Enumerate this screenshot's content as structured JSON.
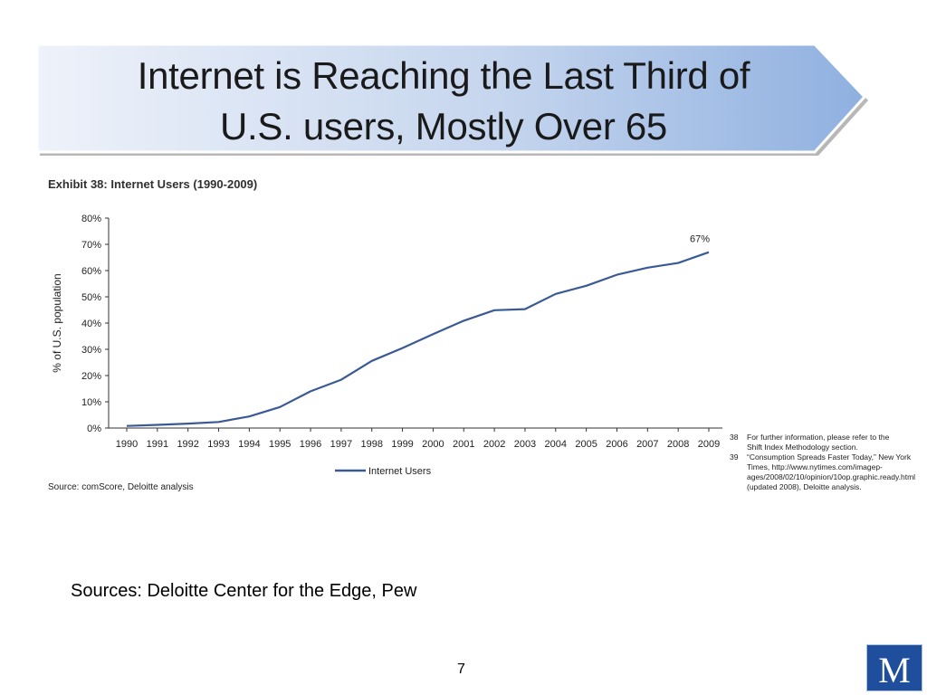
{
  "slide": {
    "title_line1": "Internet is Reaching the Last Third of",
    "title_line2": "U.S. users, Mostly Over 65",
    "exhibit_title": "Exhibit 38: Internet Users (1990-2009)",
    "source_small": "Source: comScore, Deloitte analysis",
    "sources_main": "Sources: Deloitte Center for the Edge, Pew",
    "page_number": "7",
    "logo_letter": "M",
    "footnotes": [
      {
        "num": "38",
        "text": "For further information, please refer to the Shift Index Methodology section."
      },
      {
        "num": "39",
        "text": "“Consumption Spreads Faster Today,” New York Times, http://www.nytimes.com/imagep-ages/2008/02/10/opinion/10op.graphic.ready.html (updated 2008), Deloitte analysis."
      }
    ],
    "colors": {
      "banner_light": "#eef2fa",
      "banner_dark": "#8fb0e0",
      "series_line": "#3a5a95",
      "logo_bg": "#1f4e9c"
    }
  },
  "chart_data": {
    "type": "line",
    "title": "Exhibit 38: Internet Users (1990-2009)",
    "xlabel": "",
    "ylabel": "% of U.S. population",
    "categories": [
      "1990",
      "1991",
      "1992",
      "1993",
      "1994",
      "1995",
      "1996",
      "1997",
      "1998",
      "1999",
      "2000",
      "2001",
      "2002",
      "2003",
      "2004",
      "2005",
      "2006",
      "2007",
      "2008",
      "2009"
    ],
    "series": [
      {
        "name": "Internet Users",
        "values": [
          0.8,
          1.2,
          1.7,
          2.3,
          4.4,
          8.0,
          14.0,
          18.4,
          25.6,
          30.5,
          35.8,
          40.9,
          44.9,
          45.3,
          51.1,
          54.2,
          58.4,
          61.1,
          62.9,
          67.0
        ]
      }
    ],
    "yticks": [
      0,
      10,
      20,
      30,
      40,
      50,
      60,
      70,
      80
    ],
    "ytick_labels": [
      "0%",
      "10%",
      "20%",
      "30%",
      "40%",
      "50%",
      "60%",
      "70%",
      "80%"
    ],
    "ylim": [
      0,
      80
    ],
    "annotations": [
      {
        "text": "67%",
        "x": "2009",
        "y": 67
      }
    ],
    "legend_position": "bottom",
    "grid": false
  }
}
